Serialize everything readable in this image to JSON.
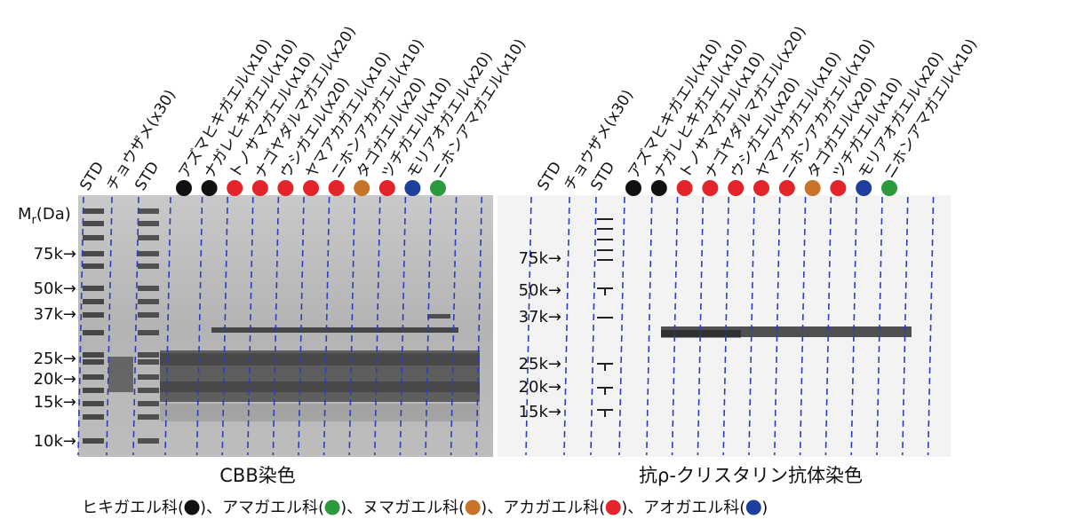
{
  "lanes": [
    {
      "label": "STD"
    },
    {
      "label": "チョウザメ(x30)"
    },
    {
      "label": "STD"
    },
    {
      "label": "アズマヒキガエル(x10)",
      "family": 0
    },
    {
      "label": "ナガレヒキガエル(x10)",
      "family": 0
    },
    {
      "label": "トノサマガエル(x10)",
      "family": 3
    },
    {
      "label": "ナゴヤダルマガエル(x20)",
      "family": 3
    },
    {
      "label": "ウシガエル(x20)",
      "family": 3
    },
    {
      "label": "ヤマアカガエル(x10)",
      "family": 3
    },
    {
      "label": "ニホンアカガエル(x10)",
      "family": 3
    },
    {
      "label": "タゴガエル(x20)",
      "family": 2
    },
    {
      "label": "ツチガエル(x10)",
      "family": 3
    },
    {
      "label": "モリアオガエル(x20)",
      "family": 4
    },
    {
      "label": "ニホンアマガエル(x10)",
      "family": 1
    }
  ],
  "panels": [
    {
      "caption": "CBB染色",
      "unit": {
        "symbol": "M",
        "subscript": "r",
        "suffix": "(Da)"
      },
      "markers": [
        "75k→",
        "50k→",
        "37k→",
        "25k→",
        "20k→",
        "15k→",
        "10k→"
      ]
    },
    {
      "caption": "抗ρ-クリスタリン抗体染色",
      "markers": [
        "75k→",
        "50k→",
        "37k→",
        "25k→",
        "20k→",
        "15k→"
      ]
    }
  ],
  "legend": {
    "families": [
      {
        "name": "ヒキガエル科",
        "color": "#111111"
      },
      {
        "name": "アマガエル科",
        "color": "#2a9a3c"
      },
      {
        "name": "ヌマガエル科",
        "color": "#c7742a"
      },
      {
        "name": "アカガエル科",
        "color": "#e3252b"
      },
      {
        "name": "アオガエル科",
        "color": "#1f3f9e"
      }
    ],
    "open": "(",
    "close": ")",
    "separator": "、"
  }
}
